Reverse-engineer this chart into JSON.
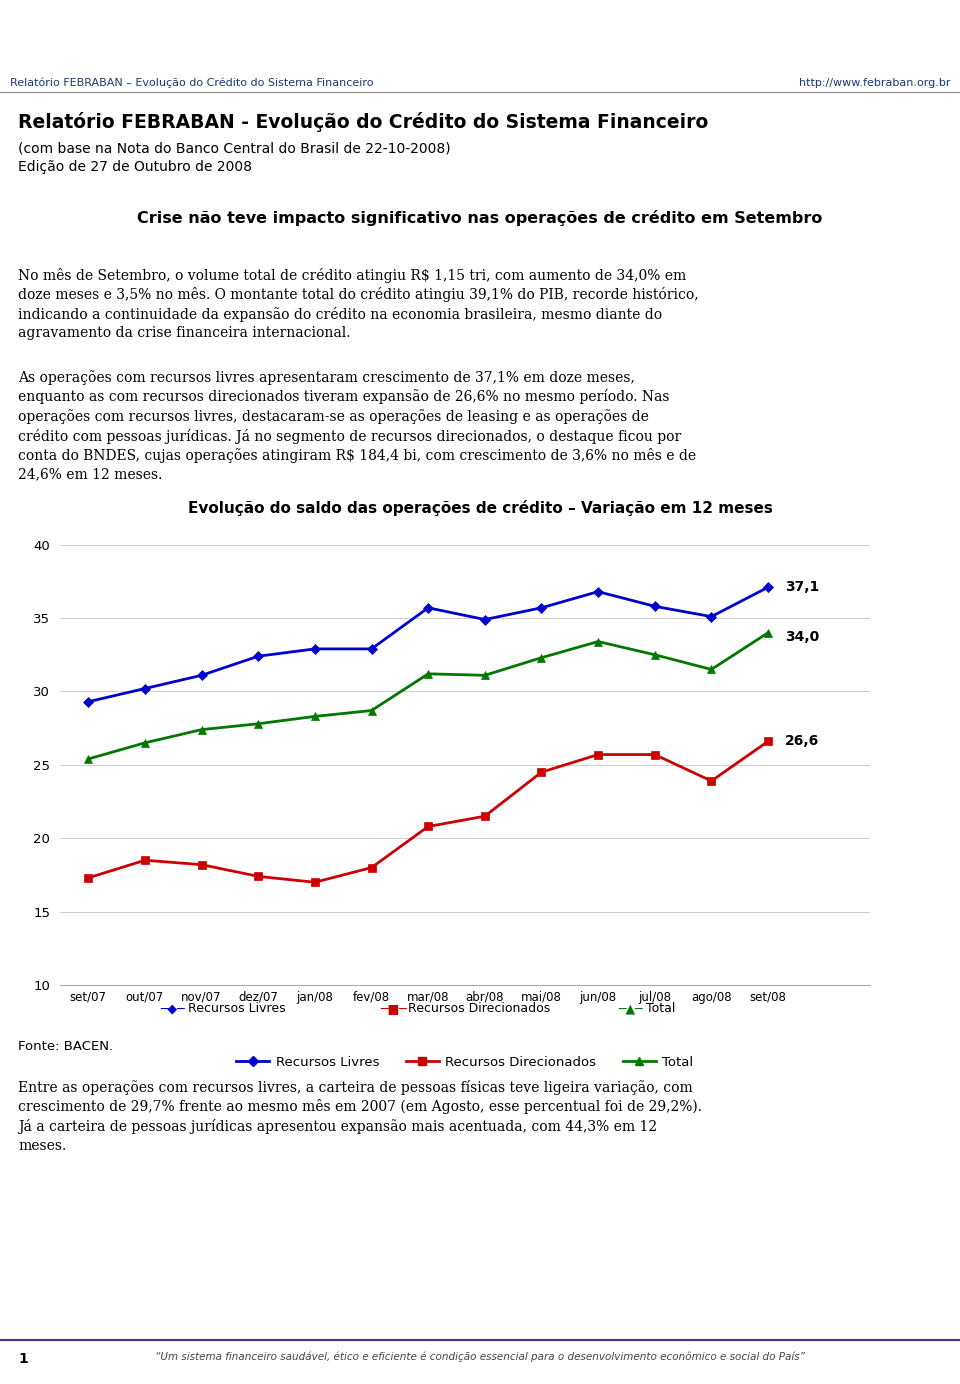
{
  "febraban_color": "#1a5276",
  "febraban_text": "FEBRABAN",
  "header_line": "Relatório FEBRABAN – Evolução do Crédito do Sistema Financeiro",
  "header_url": "http://www.febraban.org.br",
  "title_main": "Relatório FEBRABAN - Evolução do Crédito do Sistema Financeiro",
  "title_sub1": "(com base na Nota do Banco Central do Brasil de 22-10-2008)",
  "title_sub2": "Edição de 27 de Outubro de 2008",
  "section_title": "Crise não teve impacto significativo nas operações de crédito em Setembro",
  "para1_lines": [
    "No mês de Setembro, o volume total de crédito atingiu R$ 1,15 tri, com aumento de 34,0% em",
    "doze meses e 3,5% no mês. O montante total do crédito atingiu 39,1% do PIB, recorde histórico,",
    "indicando a continuidade da expansão do crédito na economia brasileira, mesmo diante do",
    "agravamento da crise financeira internacional."
  ],
  "para2_lines": [
    "As operações com recursos livres apresentaram crescimento de 37,1% em doze meses,",
    "enquanto as com recursos direcionados tiveram expansão de 26,6% no mesmo período. Nas",
    "operações com recursos livres, destacaram-se as operações de leasing e as operações de",
    "crédito com pessoas jurídicas. Já no segmento de recursos direcionados, o destaque ficou por",
    "conta do BNDES, cujas operações atingiram R$ 184,4 bi, com crescimento de 3,6% no mês e de",
    "24,6% em 12 meses."
  ],
  "chart_title": "Evolução do saldo das operações de crédito – Variação em 12 meses",
  "x_labels": [
    "set/07",
    "out/07",
    "nov/07",
    "dez/07",
    "jan/08",
    "fev/08",
    "mar/08",
    "abr/08",
    "mai/08",
    "jun/08",
    "jul/08",
    "ago/08",
    "set/08"
  ],
  "recursos_livres": [
    29.3,
    30.2,
    31.1,
    32.4,
    32.9,
    32.9,
    35.7,
    34.9,
    35.7,
    36.8,
    35.8,
    35.1,
    37.1
  ],
  "recursos_direcionados": [
    17.3,
    18.5,
    18.2,
    17.4,
    17.0,
    18.0,
    20.8,
    21.5,
    24.5,
    25.7,
    25.7,
    23.9,
    26.6
  ],
  "total": [
    25.4,
    26.5,
    27.4,
    27.8,
    28.3,
    28.7,
    31.2,
    31.1,
    32.3,
    33.4,
    32.5,
    31.5,
    34.0
  ],
  "ylim": [
    10,
    41
  ],
  "yticks": [
    10,
    15,
    20,
    25,
    30,
    35,
    40
  ],
  "line_colors": [
    "#0000cc",
    "#cc0000",
    "#007700"
  ],
  "label_37": "37,1",
  "label_34": "34,0",
  "label_26": "26,6",
  "fonte": "Fonte: BACEN.",
  "para3_lines": [
    "Entre as operações com recursos livres, a carteira de pessoas físicas teve ligeira variação, com",
    "crescimento de 29,7% frente ao mesmo mês em 2007 (em Agosto, esse percentual foi de 29,2%).",
    "Já a carteira de pessoas jurídicas apresentou expansão mais acentuada, com 44,3% em 12",
    "meses."
  ],
  "footer_num": "1",
  "footer_quote": "“Um sistema financeiro saudável, ético e eficiente é condição essencial para o desenvolvimento econômico e social do País”",
  "legend_labels": [
    "Recursos Livres",
    "Recursos Direcionados",
    "Total"
  ],
  "bg_color": "#ffffff",
  "text_color": "#000000",
  "header_text_color": "#1a3a6b",
  "separator_color": "#888888",
  "footer_line_color": "#333399"
}
